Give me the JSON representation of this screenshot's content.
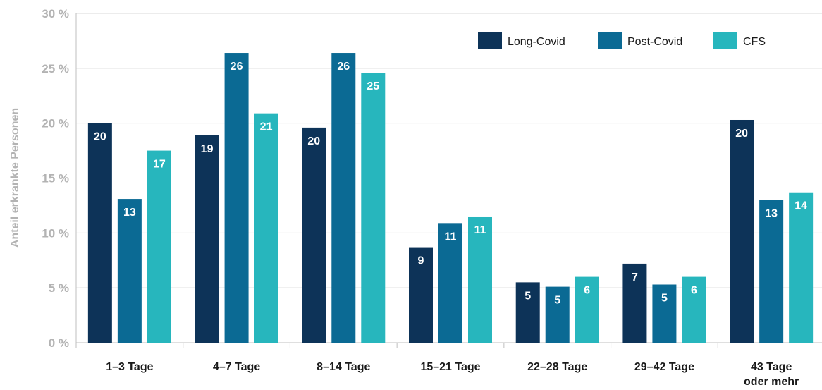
{
  "chart_data": {
    "type": "bar",
    "title": "",
    "ylabel": "Anteil erkrankte Personen",
    "xlabel": "",
    "ylim": [
      0,
      30
    ],
    "yticks": [
      0,
      5,
      10,
      15,
      20,
      25,
      30
    ],
    "ytick_labels": [
      "0 %",
      "5 %",
      "10 %",
      "15 %",
      "20 %",
      "25 %",
      "30 %"
    ],
    "grid": "horizontal",
    "legend_position": "top-right",
    "categories": [
      [
        "1–3 Tage"
      ],
      [
        "4–7 Tage"
      ],
      [
        "8–14 Tage"
      ],
      [
        "15–21 Tage"
      ],
      [
        "22–28 Tage"
      ],
      [
        "29–42 Tage"
      ],
      [
        "43 Tage",
        "oder mehr"
      ]
    ],
    "series": [
      {
        "name": "Long-Covid",
        "color": "#0d3358",
        "values": [
          20.0,
          18.9,
          19.6,
          8.7,
          5.5,
          7.2,
          20.3
        ],
        "labels": [
          "20",
          "19",
          "20",
          "9",
          "5",
          "7",
          "20"
        ]
      },
      {
        "name": "Post-Covid",
        "color": "#0b6a94",
        "values": [
          13.1,
          26.4,
          26.4,
          10.9,
          5.1,
          5.3,
          13.0
        ],
        "labels": [
          "13",
          "26",
          "26",
          "11",
          "5",
          "5",
          "13"
        ]
      },
      {
        "name": "CFS",
        "color": "#27b6bd",
        "values": [
          17.5,
          20.9,
          24.6,
          11.5,
          6.0,
          6.0,
          13.7
        ],
        "labels": [
          "17",
          "21",
          "25",
          "11",
          "6",
          "6",
          "14"
        ]
      }
    ]
  }
}
